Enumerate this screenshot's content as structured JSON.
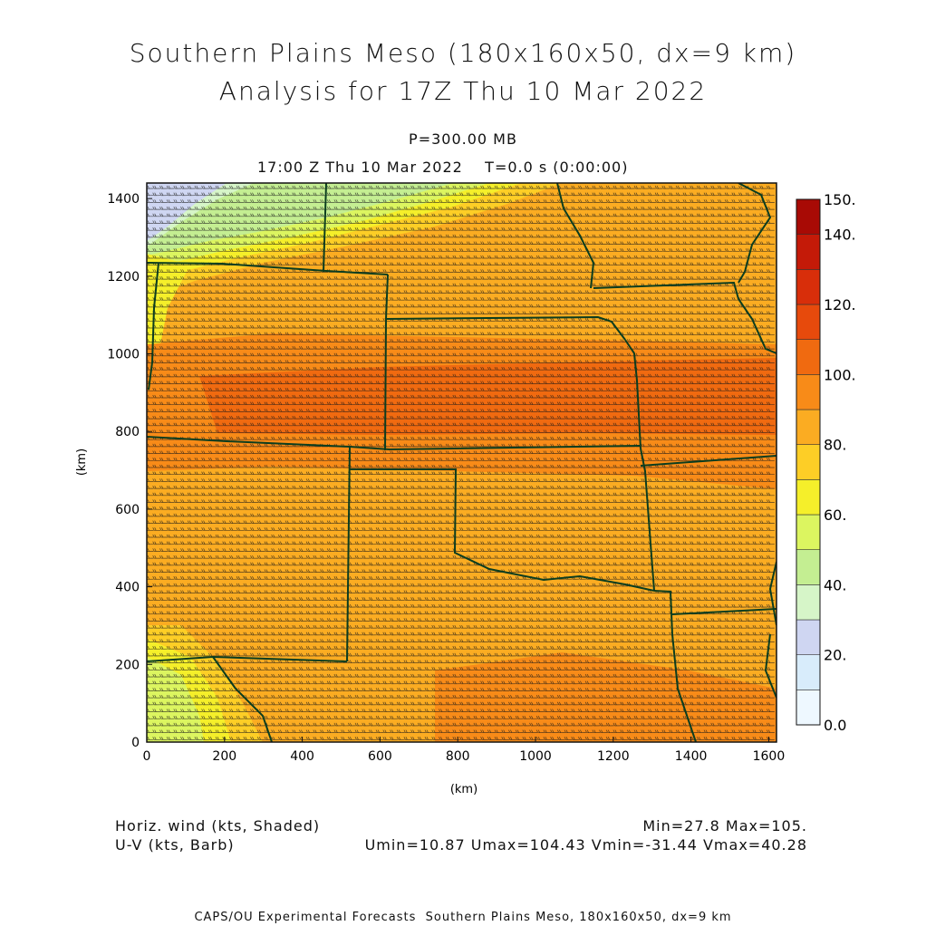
{
  "title": {
    "line1": "Southern Plains Meso (180x160x50, dx=9 km)",
    "line2": "Analysis for 17Z Thu 10 Mar 2022"
  },
  "subtitle": {
    "pressure_level": "P=300.00 MB",
    "valid_time": "17:00 Z Thu 10 Mar 2022    T=0.0 s (0:00:00)"
  },
  "footer": {
    "field_label": "Horiz. wind (kts, Shaded)",
    "overlay_label": "U-V (kts, Barb)",
    "minmax": "Min=27.8 Max=105.",
    "component_stats": "Umin=10.87 Umax=104.43 Vmin=-31.44 Vmax=40.28"
  },
  "credit": "CAPS/OU Experimental Forecasts  Southern Plains Meso, 180x160x50, dx=9 km",
  "map": {
    "x_axis_label": "(km)",
    "y_axis_label": "(km)",
    "x_range": [
      0,
      1620
    ],
    "y_range": [
      0,
      1440
    ],
    "x_ticks": [
      0,
      200,
      400,
      600,
      800,
      1000,
      1200,
      1400,
      1600
    ],
    "y_ticks": [
      0,
      200,
      400,
      600,
      800,
      1000,
      1200,
      1400
    ],
    "boundary_color": "#0b3d1f",
    "barb_color": "#1a1a1a"
  },
  "colorbar": {
    "labels": [
      "0.0",
      "20.",
      "40.",
      "60.",
      "80.",
      "100.",
      "120.",
      "140.",
      "150."
    ],
    "levels": [
      0,
      10,
      20,
      30,
      40,
      50,
      60,
      70,
      80,
      90,
      100,
      110,
      120,
      130,
      140,
      150
    ],
    "colors": [
      "#eef8ff",
      "#d8ecfb",
      "#cfd6f2",
      "#d6f5c8",
      "#c4ee92",
      "#dcf560",
      "#f5ef2a",
      "#fdce26",
      "#fbac22",
      "#f88b18",
      "#f06a10",
      "#e74a0c",
      "#d82e0a",
      "#c41a08",
      "#a80a05"
    ]
  }
}
